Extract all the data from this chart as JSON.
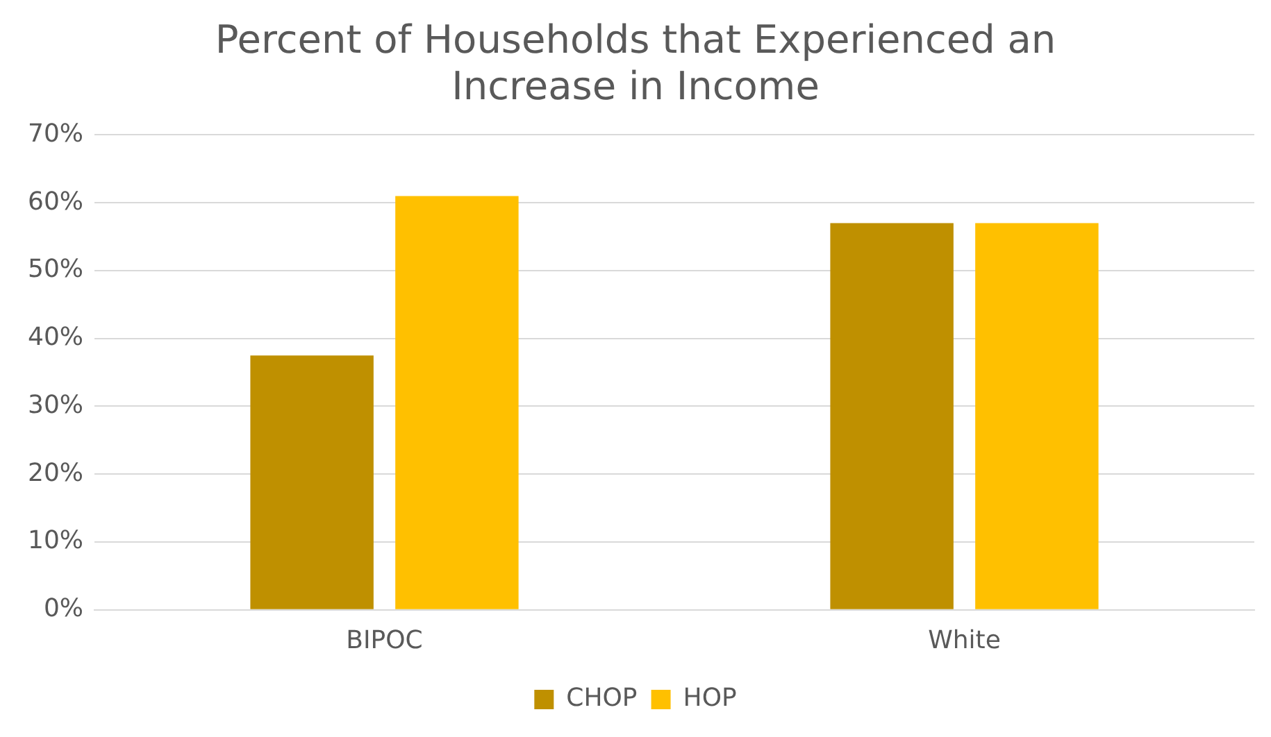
{
  "chart_data": {
    "type": "bar",
    "title": "Percent of Households that Experienced an Increase in Income",
    "categories": [
      "BIPOC",
      "White"
    ],
    "series": [
      {
        "name": "CHOP",
        "color": "#bf9000",
        "values": [
          37.5,
          57
        ]
      },
      {
        "name": "HOP",
        "color": "#ffc000",
        "values": [
          61,
          57
        ]
      }
    ],
    "ylim": [
      0,
      70
    ],
    "yticks": [
      {
        "value": 0,
        "label": "0%"
      },
      {
        "value": 10,
        "label": "10%"
      },
      {
        "value": 20,
        "label": "20%"
      },
      {
        "value": 30,
        "label": "30%"
      },
      {
        "value": 40,
        "label": "40%"
      },
      {
        "value": 50,
        "label": "50%"
      },
      {
        "value": 60,
        "label": "60%"
      },
      {
        "value": 70,
        "label": "70%"
      }
    ],
    "grid": "y",
    "legend": "bottom"
  }
}
